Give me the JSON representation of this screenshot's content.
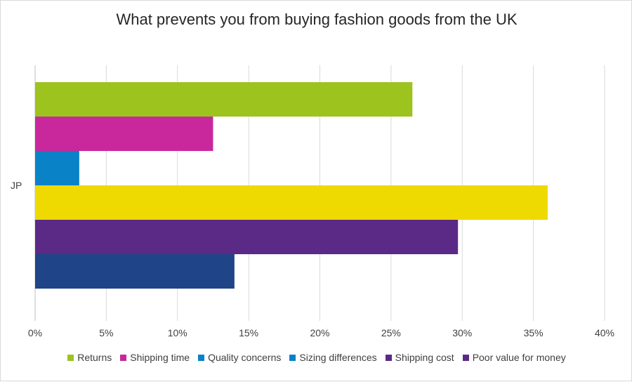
{
  "chart_data": {
    "type": "bar",
    "orientation": "horizontal",
    "title": "What prevents you from buying fashion goods from the UK",
    "categories": [
      "JP"
    ],
    "series": [
      {
        "name": "Returns",
        "color": "#9dc31e",
        "values": [
          26.5
        ]
      },
      {
        "name": "Shipping time",
        "color": "#c8289b",
        "values": [
          12.5
        ]
      },
      {
        "name": "Quality concerns",
        "color": "#0a82c8",
        "values": [
          3.1
        ]
      },
      {
        "name": "Sizing differences",
        "color": "#eed900",
        "values": [
          36.0
        ]
      },
      {
        "name": "Shipping cost",
        "color": "#5b2a86",
        "values": [
          29.7
        ]
      },
      {
        "name": "Poor value for money",
        "color": "#1f4487",
        "values": [
          14.0
        ]
      }
    ],
    "legend_swatch_colors": [
      "#9dc31e",
      "#c8289b",
      "#0a82c8",
      "#0a82c8",
      "#5b2a86",
      "#5b2a86"
    ],
    "xlim": [
      0,
      40
    ],
    "xticks": [
      "0%",
      "5%",
      "10%",
      "15%",
      "20%",
      "25%",
      "30%",
      "35%",
      "40%"
    ],
    "grid": true,
    "legend_position": "bottom"
  }
}
